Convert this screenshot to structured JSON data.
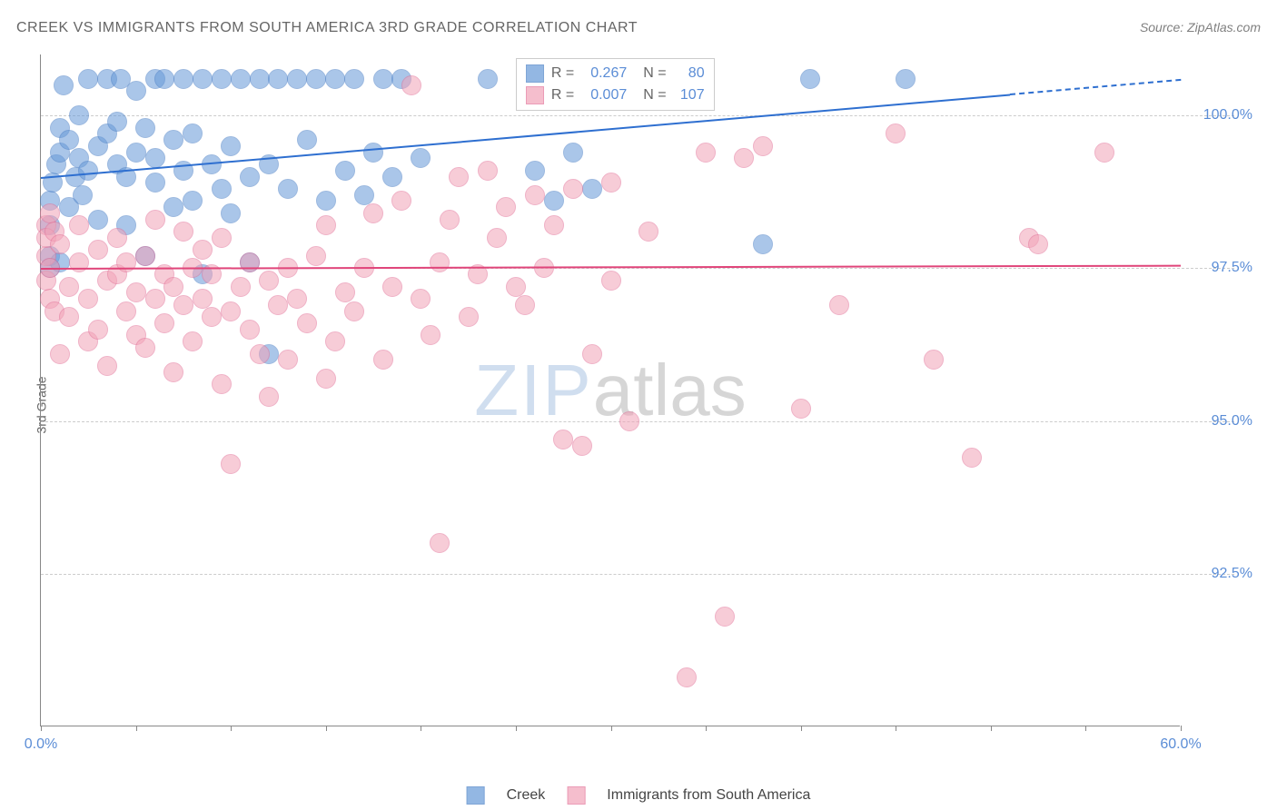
{
  "title": "CREEK VS IMMIGRANTS FROM SOUTH AMERICA 3RD GRADE CORRELATION CHART",
  "source": "Source: ZipAtlas.com",
  "ylabel": "3rd Grade",
  "watermark": {
    "part1": "ZIP",
    "part2": "atlas"
  },
  "chart": {
    "type": "scatter",
    "background_color": "#ffffff",
    "grid_color": "#cccccc",
    "axis_color": "#888888",
    "xlim": [
      0.0,
      60.0
    ],
    "ylim": [
      90.0,
      101.0
    ],
    "x_ticks_minor": [
      0,
      5,
      10,
      15,
      20,
      25,
      30,
      35,
      40,
      45,
      50,
      55,
      60
    ],
    "x_tick_labels": [
      {
        "x": 0.0,
        "label": "0.0%"
      },
      {
        "x": 60.0,
        "label": "60.0%"
      }
    ],
    "y_gridlines": [
      {
        "y": 100.0,
        "label": "100.0%"
      },
      {
        "y": 97.5,
        "label": "97.5%"
      },
      {
        "y": 95.0,
        "label": "95.0%"
      },
      {
        "y": 92.5,
        "label": "92.5%"
      }
    ],
    "marker_radius": 10,
    "marker_opacity": 0.55,
    "series": [
      {
        "name": "Creek",
        "legend_label": "Creek",
        "color": "#6699d8",
        "stroke": "#4a7fc5",
        "R": "0.267",
        "N": "80",
        "trend": {
          "x0": 0.0,
          "y0": 99.0,
          "x1": 60.0,
          "y1": 100.6,
          "color": "#2e6fd0",
          "dash_after_x": 51.0,
          "width": 2
        },
        "points": [
          [
            0.5,
            98.6
          ],
          [
            0.5,
            98.2
          ],
          [
            0.5,
            97.7
          ],
          [
            0.5,
            97.5
          ],
          [
            0.6,
            98.9
          ],
          [
            0.8,
            99.2
          ],
          [
            1.0,
            99.8
          ],
          [
            1.0,
            99.4
          ],
          [
            1.0,
            97.6
          ],
          [
            1.2,
            100.5
          ],
          [
            1.5,
            98.5
          ],
          [
            1.5,
            99.6
          ],
          [
            1.8,
            99.0
          ],
          [
            2.0,
            100.0
          ],
          [
            2.0,
            99.3
          ],
          [
            2.2,
            98.7
          ],
          [
            2.5,
            100.6
          ],
          [
            2.5,
            99.1
          ],
          [
            3.0,
            99.5
          ],
          [
            3.0,
            98.3
          ],
          [
            3.5,
            100.6
          ],
          [
            3.5,
            99.7
          ],
          [
            4.0,
            99.9
          ],
          [
            4.0,
            99.2
          ],
          [
            4.2,
            100.6
          ],
          [
            4.5,
            99.0
          ],
          [
            4.5,
            98.2
          ],
          [
            5.0,
            100.4
          ],
          [
            5.0,
            99.4
          ],
          [
            5.5,
            99.8
          ],
          [
            5.5,
            97.7
          ],
          [
            6.0,
            100.6
          ],
          [
            6.0,
            98.9
          ],
          [
            6.0,
            99.3
          ],
          [
            6.5,
            100.6
          ],
          [
            7.0,
            99.6
          ],
          [
            7.0,
            98.5
          ],
          [
            7.5,
            100.6
          ],
          [
            7.5,
            99.1
          ],
          [
            8.0,
            99.7
          ],
          [
            8.0,
            98.6
          ],
          [
            8.5,
            100.6
          ],
          [
            8.5,
            97.4
          ],
          [
            9.0,
            99.2
          ],
          [
            9.5,
            100.6
          ],
          [
            9.5,
            98.8
          ],
          [
            10.0,
            99.5
          ],
          [
            10.0,
            98.4
          ],
          [
            10.5,
            100.6
          ],
          [
            11.0,
            99.0
          ],
          [
            11.0,
            97.6
          ],
          [
            11.5,
            100.6
          ],
          [
            12.0,
            99.2
          ],
          [
            12.0,
            96.1
          ],
          [
            12.5,
            100.6
          ],
          [
            13.0,
            98.8
          ],
          [
            13.5,
            100.6
          ],
          [
            14.0,
            99.6
          ],
          [
            14.5,
            100.6
          ],
          [
            15.0,
            98.6
          ],
          [
            15.5,
            100.6
          ],
          [
            16.0,
            99.1
          ],
          [
            16.5,
            100.6
          ],
          [
            17.0,
            98.7
          ],
          [
            17.5,
            99.4
          ],
          [
            18.0,
            100.6
          ],
          [
            18.5,
            99.0
          ],
          [
            19.0,
            100.6
          ],
          [
            20.0,
            99.3
          ],
          [
            23.5,
            100.6
          ],
          [
            26.0,
            99.1
          ],
          [
            27.0,
            98.6
          ],
          [
            28.0,
            99.4
          ],
          [
            29.0,
            98.8
          ],
          [
            30.0,
            100.6
          ],
          [
            33.0,
            100.6
          ],
          [
            38.0,
            97.9
          ],
          [
            40.5,
            100.6
          ],
          [
            45.5,
            100.6
          ]
        ]
      },
      {
        "name": "ImmigrantsSouthAmerica",
        "legend_label": "Immigrants from South America",
        "color": "#f2a3b8",
        "stroke": "#e37399",
        "R": "0.007",
        "N": "107",
        "trend": {
          "x0": 0.0,
          "y0": 97.5,
          "x1": 60.0,
          "y1": 97.55,
          "color": "#e0457a",
          "width": 2
        },
        "points": [
          [
            0.3,
            98.2
          ],
          [
            0.3,
            97.7
          ],
          [
            0.3,
            97.3
          ],
          [
            0.3,
            98.0
          ],
          [
            0.5,
            98.4
          ],
          [
            0.5,
            97.0
          ],
          [
            0.5,
            97.5
          ],
          [
            0.7,
            98.1
          ],
          [
            0.7,
            96.8
          ],
          [
            1.0,
            97.9
          ],
          [
            1.0,
            96.1
          ],
          [
            1.5,
            97.2
          ],
          [
            1.5,
            96.7
          ],
          [
            2.0,
            97.6
          ],
          [
            2.0,
            98.2
          ],
          [
            2.5,
            96.3
          ],
          [
            2.5,
            97.0
          ],
          [
            3.0,
            97.8
          ],
          [
            3.0,
            96.5
          ],
          [
            3.5,
            97.3
          ],
          [
            3.5,
            95.9
          ],
          [
            4.0,
            98.0
          ],
          [
            4.0,
            97.4
          ],
          [
            4.5,
            96.8
          ],
          [
            4.5,
            97.6
          ],
          [
            5.0,
            96.4
          ],
          [
            5.0,
            97.1
          ],
          [
            5.5,
            97.7
          ],
          [
            5.5,
            96.2
          ],
          [
            6.0,
            97.0
          ],
          [
            6.0,
            98.3
          ],
          [
            6.5,
            96.6
          ],
          [
            6.5,
            97.4
          ],
          [
            7.0,
            95.8
          ],
          [
            7.0,
            97.2
          ],
          [
            7.5,
            96.9
          ],
          [
            7.5,
            98.1
          ],
          [
            8.0,
            97.5
          ],
          [
            8.0,
            96.3
          ],
          [
            8.5,
            97.0
          ],
          [
            8.5,
            97.8
          ],
          [
            9.0,
            96.7
          ],
          [
            9.0,
            97.4
          ],
          [
            9.5,
            95.6
          ],
          [
            9.5,
            98.0
          ],
          [
            10.0,
            96.8
          ],
          [
            10.0,
            94.3
          ],
          [
            10.5,
            97.2
          ],
          [
            11.0,
            96.5
          ],
          [
            11.0,
            97.6
          ],
          [
            11.5,
            96.1
          ],
          [
            12.0,
            97.3
          ],
          [
            12.0,
            95.4
          ],
          [
            12.5,
            96.9
          ],
          [
            13.0,
            97.5
          ],
          [
            13.0,
            96.0
          ],
          [
            13.5,
            97.0
          ],
          [
            14.0,
            96.6
          ],
          [
            14.5,
            97.7
          ],
          [
            15.0,
            95.7
          ],
          [
            15.0,
            98.2
          ],
          [
            15.5,
            96.3
          ],
          [
            16.0,
            97.1
          ],
          [
            16.5,
            96.8
          ],
          [
            17.0,
            97.5
          ],
          [
            17.5,
            98.4
          ],
          [
            18.0,
            96.0
          ],
          [
            18.5,
            97.2
          ],
          [
            19.0,
            98.6
          ],
          [
            19.5,
            100.5
          ],
          [
            20.0,
            97.0
          ],
          [
            20.5,
            96.4
          ],
          [
            21.0,
            97.6
          ],
          [
            21.0,
            93.0
          ],
          [
            21.5,
            98.3
          ],
          [
            22.0,
            99.0
          ],
          [
            22.5,
            96.7
          ],
          [
            23.0,
            97.4
          ],
          [
            23.5,
            99.1
          ],
          [
            24.0,
            98.0
          ],
          [
            24.5,
            98.5
          ],
          [
            25.0,
            97.2
          ],
          [
            25.5,
            96.9
          ],
          [
            26.0,
            98.7
          ],
          [
            26.5,
            97.5
          ],
          [
            27.0,
            98.2
          ],
          [
            27.5,
            94.7
          ],
          [
            28.0,
            98.8
          ],
          [
            28.5,
            94.6
          ],
          [
            29.0,
            96.1
          ],
          [
            30.0,
            97.3
          ],
          [
            30.0,
            98.9
          ],
          [
            31.0,
            95.0
          ],
          [
            32.0,
            98.1
          ],
          [
            33.0,
            100.5
          ],
          [
            34.0,
            90.8
          ],
          [
            35.0,
            99.4
          ],
          [
            36.0,
            91.8
          ],
          [
            37.0,
            99.3
          ],
          [
            38.0,
            99.5
          ],
          [
            40.0,
            95.2
          ],
          [
            42.0,
            96.9
          ],
          [
            45.0,
            99.7
          ],
          [
            47.0,
            96.0
          ],
          [
            49.0,
            94.4
          ],
          [
            52.0,
            98.0
          ],
          [
            52.5,
            97.9
          ],
          [
            56.0,
            99.4
          ]
        ]
      }
    ]
  },
  "legend_box": {
    "rows": [
      {
        "swatch": "#6699d8",
        "swatch_border": "#4a7fc5",
        "r_label": "R =",
        "r_val": "0.267",
        "n_label": "N =",
        "n_val": "80"
      },
      {
        "swatch": "#f2a3b8",
        "swatch_border": "#e37399",
        "r_label": "R =",
        "r_val": "0.007",
        "n_label": "N =",
        "n_val": "107"
      }
    ]
  }
}
